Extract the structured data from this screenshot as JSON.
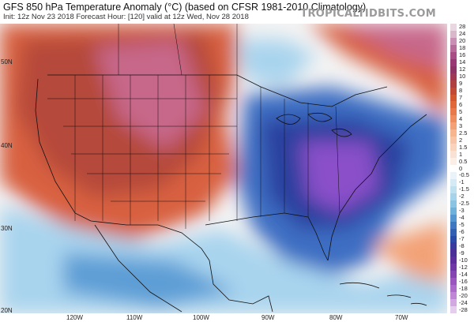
{
  "header": {
    "title": "GFS 850 hPa Temperature Anomaly (°C) (based on CFSR 1981-2010 Climatology)",
    "subtitle": "Init: 12z Nov 23 2018   Forecast Hour: [120]   valid at 12z Wed, Nov 28 2018",
    "brand": "TROPICALTIDBITS.COM"
  },
  "axes": {
    "lat_labels": [
      "50N",
      "40N",
      "30N",
      "20N"
    ],
    "lon_labels": [
      "120W",
      "110W",
      "100W",
      "90W",
      "80W",
      "70W"
    ]
  },
  "colorbar": {
    "labels": [
      "28",
      "24",
      "20",
      "18",
      "16",
      "14",
      "12",
      "10",
      "9",
      "8",
      "7",
      "6",
      "5",
      "4",
      "3",
      "2.5",
      "2",
      "1.5",
      "1",
      "0.5",
      "0",
      "-0.5",
      "-1",
      "-1.5",
      "-2",
      "-2.5",
      "-3",
      "-4",
      "-5",
      "-6",
      "-7",
      "-8",
      "-9",
      "-10",
      "-12",
      "-14",
      "-16",
      "-18",
      "-20",
      "-24",
      "-28"
    ],
    "colors": [
      "#e8d6e0",
      "#d9b8cb",
      "#c990b3",
      "#b86c99",
      "#a84d85",
      "#9a3a74",
      "#8e3566",
      "#a03a52",
      "#b0403f",
      "#c24a35",
      "#d4582f",
      "#e0683a",
      "#e8794a",
      "#ef8d5e",
      "#f3a277",
      "#f6b48f",
      "#f7c4a6",
      "#f8d3bd",
      "#f9e1d3",
      "#fbeee6",
      "#ffffff",
      "#e9f3f9",
      "#d5eaf4",
      "#bfe0ef",
      "#a6d3ea",
      "#8bc4e3",
      "#6eb2dc",
      "#5496cf",
      "#3f78c0",
      "#3460b4",
      "#2c4aa7",
      "#3a3a9c",
      "#4a2f99",
      "#5c2f9c",
      "#7038a5",
      "#8545b1",
      "#9a55bf",
      "#ac6bca",
      "#bf86d6",
      "#d2a8e1",
      "#e5cdee"
    ]
  },
  "map": {
    "fill_colors": {
      "warm_strong": "#b54a3a",
      "warm": "#d8613f",
      "magenta": "#c7678a",
      "cool": "#3e6ec3",
      "cold": "#2c3f9f",
      "purple": "#8a4fc9",
      "neutral": "#f3f3f3",
      "light_blue": "#a9d4ee"
    }
  }
}
